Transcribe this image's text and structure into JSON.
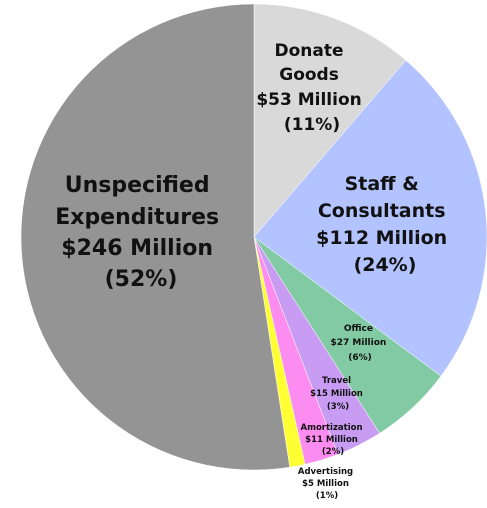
{
  "chart_data": {
    "type": "pie",
    "title": "",
    "slices": [
      {
        "name": "Donate Goods",
        "amount": "$53 Million",
        "pct_label": "(11%)",
        "value": 53,
        "color": "#d9d9d9"
      },
      {
        "name": "Staff & Consultants",
        "amount": "$112 Million",
        "pct_label": "(24%)",
        "value": 112,
        "color": "#b3c3ff"
      },
      {
        "name": "Office",
        "amount": "$27 Million",
        "pct_label": "(6%)",
        "value": 27,
        "color": "#82caa3"
      },
      {
        "name": "Travel",
        "amount": "$15 Million",
        "pct_label": "(3%)",
        "value": 15,
        "color": "#c99cf3"
      },
      {
        "name": "Amortization",
        "amount": "$11 Million",
        "pct_label": "(2%)",
        "value": 11,
        "color": "#fc8cf0"
      },
      {
        "name": "Advertising",
        "amount": "$5 Million",
        "pct_label": "(1%)",
        "value": 5,
        "color": "#ffff33"
      },
      {
        "name": "Unspecified Expenditures",
        "amount": "$246 Million",
        "pct_label": "(52%)",
        "value": 246,
        "color": "#949494"
      }
    ],
    "labels": {
      "donate_goods": [
        "Donate",
        "Goods",
        "$53 Million",
        "(11%)"
      ],
      "staff": [
        "Staff &",
        "Consultants",
        "$112 Million",
        "(24%)"
      ],
      "office": [
        "Office",
        "$27 Million",
        "(6%)"
      ],
      "travel": [
        "Travel",
        "$15 Million",
        "(3%)"
      ],
      "amortization": [
        "Amortization",
        "$11 Million",
        "(2%)"
      ],
      "advertising": [
        "Advertising",
        "$5 Million",
        "(1%)"
      ],
      "unspecified": [
        "Unspecified",
        "Expenditures",
        "$246 Million",
        "(52%)"
      ]
    }
  }
}
